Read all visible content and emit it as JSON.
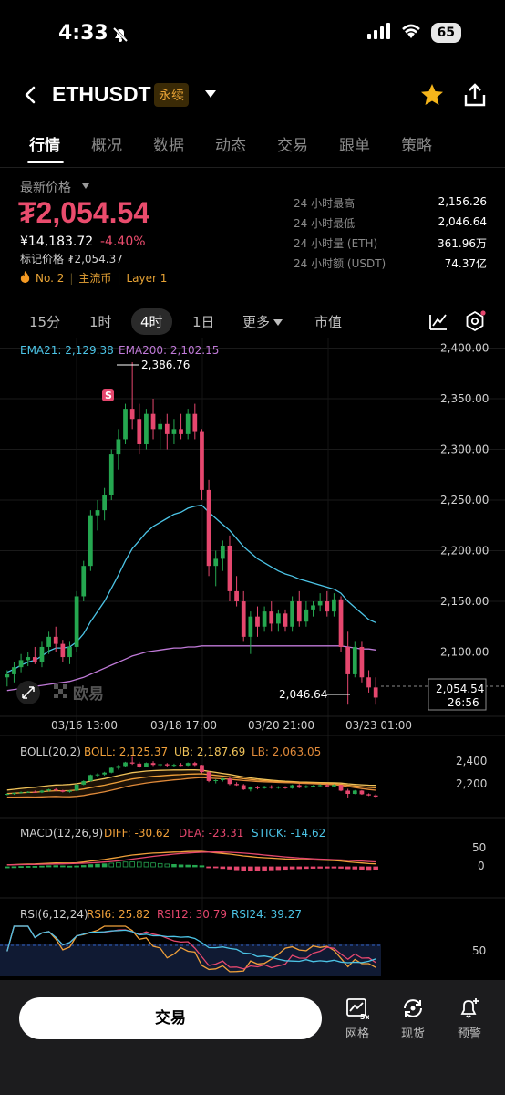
{
  "status": {
    "time": "4:33",
    "battery": "65"
  },
  "header": {
    "symbol": "ETHUSDT",
    "contract_tag": "永续"
  },
  "tabs": [
    "行情",
    "概况",
    "数据",
    "动态",
    "交易",
    "跟单",
    "策略"
  ],
  "price": {
    "label": "最新价格",
    "last": "₮2,054.54",
    "cny": "¥14,183.72",
    "change": "-4.40%",
    "mark": "标记价格 ₮2,054.37",
    "tags": [
      "No. 2",
      "主流币",
      "Layer 1"
    ]
  },
  "stats": [
    {
      "k": "24 小时最高",
      "v": "2,156.26"
    },
    {
      "k": "24 小时最低",
      "v": "2,046.64"
    },
    {
      "k": "24 小时量 (ETH)",
      "v": "361.96万"
    },
    {
      "k": "24 小时额 (USDT)",
      "v": "74.37亿"
    }
  ],
  "timeframes": {
    "items": [
      "15分",
      "1时",
      "4时",
      "1日"
    ],
    "more": "更多",
    "index": "市值",
    "active": "4时"
  },
  "chart": {
    "ema_legend": {
      "ema21": "EMA21: 2,129.38",
      "ema200": "EMA200: 2,102.15"
    },
    "high_label": "2,386.76",
    "low_label": "2,046.64",
    "price_tag": {
      "price": "2,054.54",
      "countdown": "26:56"
    },
    "watermark": "欧易",
    "s_marker": "S",
    "boll_legend": {
      "name": "BOLL(20,2)",
      "boll": "BOLL: 2,125.37",
      "ub": "UB: 2,187.69",
      "lb": "LB: 2,063.05"
    },
    "boll_axis": [
      "2,400",
      "2,200"
    ],
    "macd_legend": {
      "name": "MACD(12,26,9)",
      "diff": "DIFF: -30.62",
      "dea": "DEA: -23.31",
      "stick": "STICK: -14.62"
    },
    "macd_axis": [
      "50",
      "0"
    ],
    "rsi_legend": {
      "name": "RSI(6,12,24)",
      "rsi6": "RSI6: 25.82",
      "rsi12": "RSI12: 30.79",
      "rsi24": "RSI24: 39.27"
    },
    "rsi_axis": [
      "50"
    ],
    "colors": {
      "up": "#25a750",
      "down": "#e5476e",
      "ema21": "#4cc4e6",
      "ema200": "#c07ad8"
    }
  },
  "chart_data": {
    "type": "candlestick",
    "price_axis_ticks": [
      2400,
      2350,
      2300,
      2250,
      2200,
      2150,
      2100
    ],
    "time_axis_labels": [
      "03/16 13:00",
      "03/18 17:00",
      "03/20 21:00",
      "03/23 01:00"
    ],
    "ylim": [
      2050,
      2405
    ],
    "candles": [
      [
        2075,
        2082,
        2066,
        2078
      ],
      [
        2078,
        2090,
        2070,
        2085
      ],
      [
        2085,
        2098,
        2080,
        2092
      ],
      [
        2092,
        2100,
        2086,
        2095
      ],
      [
        2095,
        2105,
        2088,
        2090
      ],
      [
        2090,
        2110,
        2085,
        2105
      ],
      [
        2105,
        2120,
        2098,
        2115
      ],
      [
        2115,
        2125,
        2100,
        2108
      ],
      [
        2108,
        2112,
        2090,
        2095
      ],
      [
        2095,
        2110,
        2088,
        2105
      ],
      [
        2105,
        2160,
        2100,
        2155
      ],
      [
        2155,
        2190,
        2150,
        2185
      ],
      [
        2185,
        2240,
        2180,
        2235
      ],
      [
        2235,
        2250,
        2220,
        2240
      ],
      [
        2240,
        2262,
        2230,
        2255
      ],
      [
        2255,
        2300,
        2250,
        2295
      ],
      [
        2295,
        2320,
        2280,
        2310
      ],
      [
        2310,
        2345,
        2305,
        2340
      ],
      [
        2340,
        2386,
        2320,
        2330
      ],
      [
        2330,
        2345,
        2295,
        2305
      ],
      [
        2305,
        2340,
        2300,
        2335
      ],
      [
        2335,
        2350,
        2310,
        2320
      ],
      [
        2320,
        2330,
        2300,
        2325
      ],
      [
        2325,
        2335,
        2300,
        2315
      ],
      [
        2315,
        2330,
        2305,
        2320
      ],
      [
        2320,
        2335,
        2310,
        2315
      ],
      [
        2315,
        2340,
        2310,
        2335
      ],
      [
        2335,
        2345,
        2310,
        2318
      ],
      [
        2318,
        2320,
        2250,
        2260
      ],
      [
        2260,
        2270,
        2175,
        2185
      ],
      [
        2185,
        2200,
        2165,
        2192
      ],
      [
        2192,
        2210,
        2180,
        2205
      ],
      [
        2205,
        2215,
        2150,
        2160
      ],
      [
        2160,
        2175,
        2145,
        2150
      ],
      [
        2150,
        2160,
        2110,
        2115
      ],
      [
        2115,
        2140,
        2098,
        2135
      ],
      [
        2135,
        2145,
        2115,
        2125
      ],
      [
        2125,
        2145,
        2120,
        2140
      ],
      [
        2140,
        2150,
        2120,
        2128
      ],
      [
        2128,
        2142,
        2120,
        2138
      ],
      [
        2138,
        2142,
        2120,
        2125
      ],
      [
        2125,
        2155,
        2120,
        2150
      ],
      [
        2150,
        2160,
        2125,
        2130
      ],
      [
        2130,
        2150,
        2125,
        2142
      ],
      [
        2142,
        2150,
        2135,
        2146
      ],
      [
        2146,
        2158,
        2140,
        2150
      ],
      [
        2150,
        2160,
        2135,
        2140
      ],
      [
        2140,
        2158,
        2135,
        2152
      ],
      [
        2152,
        2155,
        2100,
        2105
      ],
      [
        2105,
        2120,
        2048,
        2078
      ],
      [
        2078,
        2110,
        2075,
        2105
      ],
      [
        2105,
        2110,
        2070,
        2075
      ],
      [
        2075,
        2082,
        2060,
        2065
      ],
      [
        2065,
        2075,
        2048,
        2055
      ]
    ],
    "ema21": [
      2080,
      2083,
      2087,
      2090,
      2092,
      2096,
      2101,
      2104,
      2104,
      2105,
      2110,
      2118,
      2130,
      2140,
      2150,
      2163,
      2176,
      2190,
      2202,
      2210,
      2218,
      2224,
      2228,
      2232,
      2236,
      2238,
      2242,
      2244,
      2245,
      2238,
      2232,
      2226,
      2220,
      2212,
      2204,
      2198,
      2192,
      2188,
      2184,
      2180,
      2177,
      2175,
      2172,
      2170,
      2168,
      2166,
      2164,
      2162,
      2158,
      2150,
      2144,
      2138,
      2132,
      2129
    ],
    "ema200": [
      2062,
      2063,
      2064,
      2065,
      2066,
      2067,
      2068,
      2069,
      2070,
      2071,
      2073,
      2075,
      2078,
      2081,
      2084,
      2087,
      2090,
      2093,
      2096,
      2098,
      2100,
      2101,
      2102,
      2103,
      2104,
      2104,
      2105,
      2105,
      2106,
      2106,
      2106,
      2106,
      2106,
      2106,
      2106,
      2106,
      2106,
      2106,
      2106,
      2106,
      2106,
      2106,
      2106,
      2106,
      2106,
      2106,
      2106,
      2106,
      2106,
      2105,
      2104,
      2103,
      2103,
      2102
    ]
  }
}
